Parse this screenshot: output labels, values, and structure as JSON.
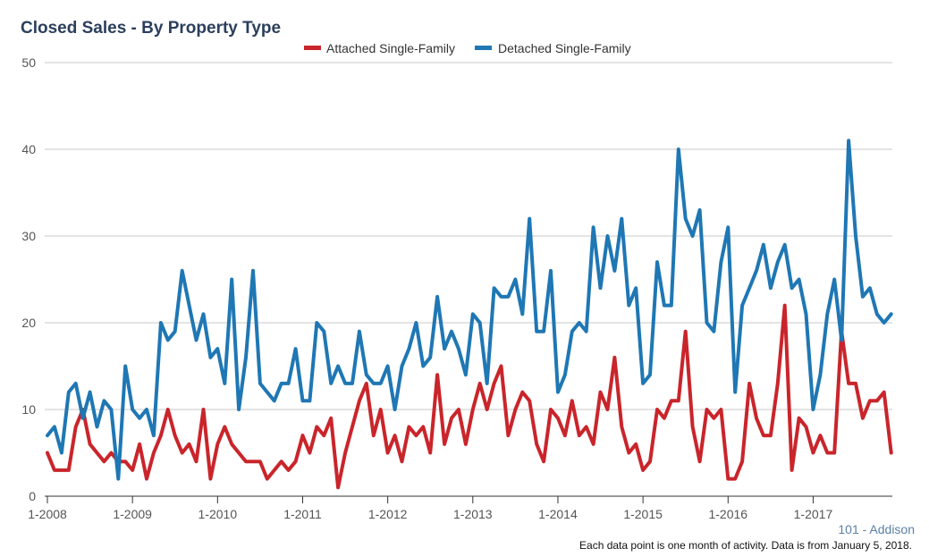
{
  "chart_data": {
    "type": "line",
    "title": "Closed Sales - By Property Type",
    "ylim": [
      0,
      50
    ],
    "yticks": [
      "0",
      "10",
      "20",
      "30",
      "40",
      "50"
    ],
    "xticks": [
      "1-2008",
      "1-2009",
      "1-2010",
      "1-2011",
      "1-2012",
      "1-2013",
      "1-2014",
      "1-2015",
      "1-2016",
      "1-2017"
    ],
    "x_start": "1-2008",
    "x_end": "12-2017",
    "grid": true,
    "legend_position": "top-center",
    "series": [
      {
        "name": "Attached Single-Family",
        "color": "#c9252b",
        "values": [
          5,
          3,
          3,
          3,
          8,
          10,
          6,
          5,
          4,
          5,
          4,
          4,
          3,
          6,
          2,
          5,
          7,
          10,
          7,
          5,
          6,
          4,
          10,
          2,
          6,
          8,
          6,
          5,
          4,
          4,
          4,
          2,
          3,
          4,
          3,
          4,
          7,
          5,
          8,
          7,
          9,
          1,
          5,
          8,
          11,
          13,
          7,
          10,
          5,
          7,
          4,
          8,
          7,
          8,
          5,
          14,
          6,
          9,
          10,
          6,
          10,
          13,
          10,
          13,
          15,
          7,
          10,
          12,
          11,
          6,
          4,
          10,
          9,
          7,
          11,
          7,
          8,
          6,
          12,
          10,
          16,
          8,
          5,
          6,
          3,
          4,
          10,
          9,
          11,
          11,
          19,
          8,
          4,
          10,
          9,
          10,
          2,
          2,
          4,
          13,
          9,
          7,
          7,
          13,
          22,
          3,
          9,
          8,
          5,
          7,
          5,
          5,
          19,
          13,
          13,
          9,
          11,
          11,
          12,
          5
        ]
      },
      {
        "name": "Detached Single-Family",
        "color": "#1f77b4",
        "values": [
          7,
          8,
          5,
          12,
          13,
          9,
          12,
          8,
          11,
          10,
          2,
          15,
          10,
          9,
          10,
          7,
          20,
          18,
          19,
          26,
          22,
          18,
          21,
          16,
          17,
          13,
          25,
          10,
          16,
          26,
          13,
          12,
          11,
          13,
          13,
          17,
          11,
          11,
          20,
          19,
          13,
          15,
          13,
          13,
          19,
          14,
          13,
          13,
          15,
          10,
          15,
          17,
          20,
          15,
          16,
          23,
          17,
          19,
          17,
          14,
          21,
          20,
          13,
          24,
          23,
          23,
          25,
          21,
          32,
          19,
          19,
          26,
          12,
          14,
          19,
          20,
          19,
          31,
          24,
          30,
          26,
          32,
          22,
          24,
          13,
          14,
          27,
          22,
          22,
          40,
          32,
          30,
          33,
          20,
          19,
          27,
          31,
          12,
          22,
          24,
          26,
          29,
          24,
          27,
          29,
          24,
          25,
          21,
          10,
          14,
          21,
          25,
          18,
          41,
          30,
          23,
          24,
          21,
          20,
          21
        ]
      }
    ]
  },
  "footer": {
    "region": "101 - Addison",
    "note": "Each data point is one month of activity. Data is from January 5, 2018."
  }
}
